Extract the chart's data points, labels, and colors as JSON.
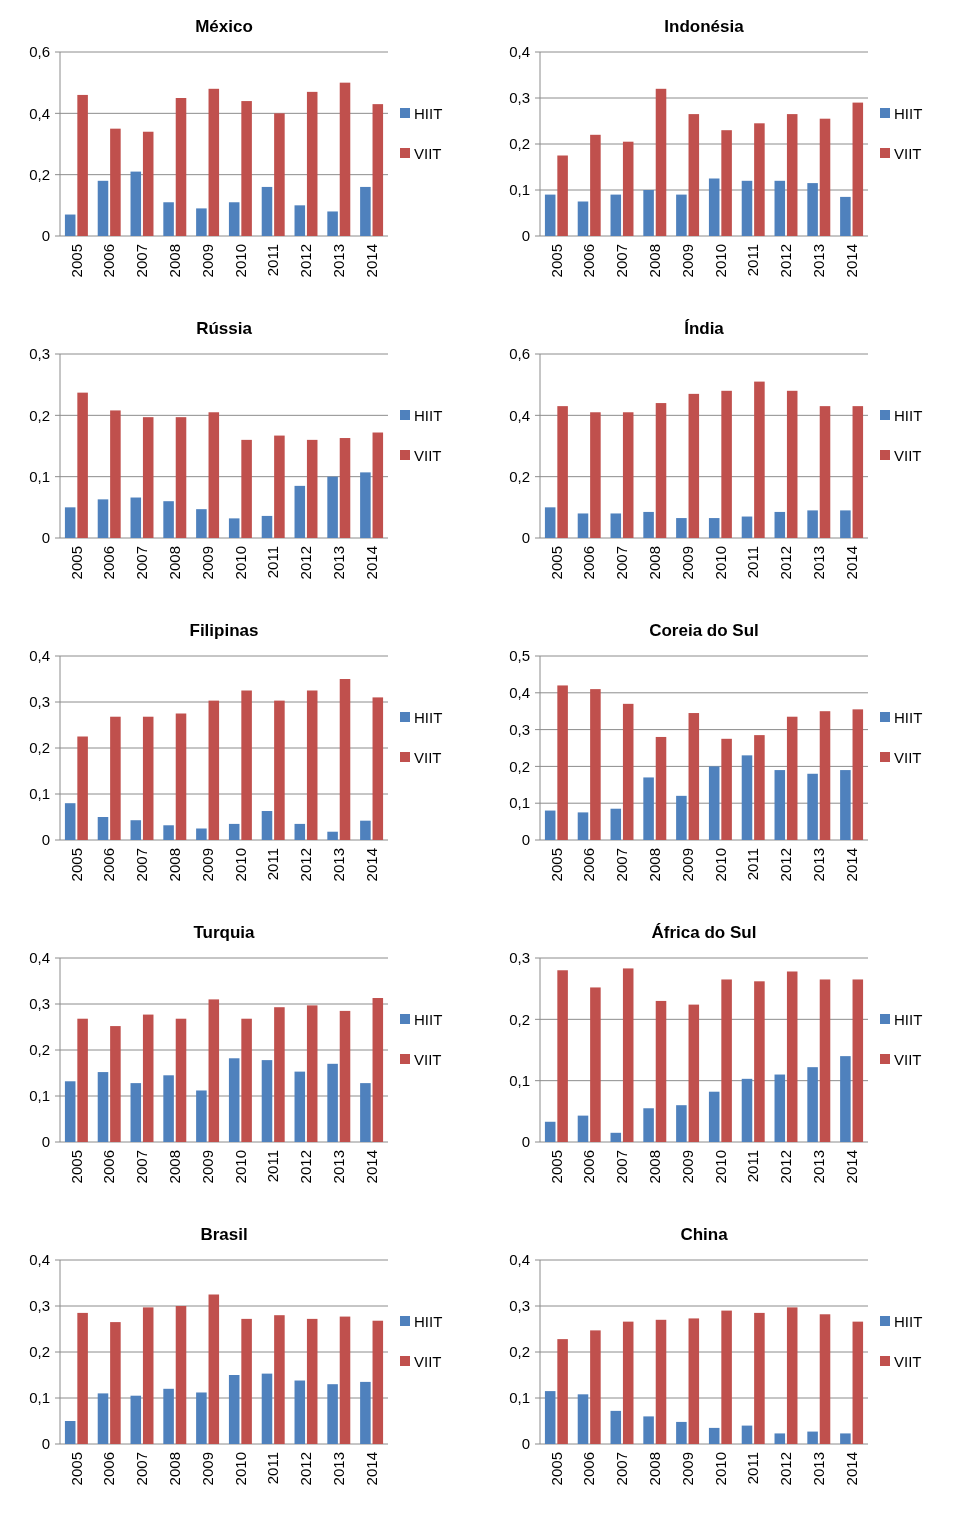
{
  "chart_data": [
    {
      "type": "bar",
      "title": "México",
      "categories": [
        "2005",
        "2006",
        "2007",
        "2008",
        "2009",
        "2010",
        "2011",
        "2012",
        "2013",
        "2014"
      ],
      "ylim": [
        0,
        0.6
      ],
      "yticks": [
        {
          "value": 0,
          "label": "0"
        },
        {
          "value": 0.2,
          "label": "0,2"
        },
        {
          "value": 0.4,
          "label": "0,4"
        },
        {
          "value": 0.6,
          "label": "0,6"
        }
      ],
      "grid": "y",
      "legend": "right",
      "series": [
        {
          "name": "HIIT",
          "color": "#4f81bd",
          "values": [
            0.07,
            0.18,
            0.21,
            0.11,
            0.09,
            0.11,
            0.16,
            0.1,
            0.08,
            0.16
          ]
        },
        {
          "name": "VIIT",
          "color": "#c0504d",
          "values": [
            0.46,
            0.35,
            0.34,
            0.45,
            0.48,
            0.44,
            0.4,
            0.47,
            0.5,
            0.43
          ]
        }
      ]
    },
    {
      "type": "bar",
      "title": "Indonésia",
      "categories": [
        "2005",
        "2006",
        "2007",
        "2008",
        "2009",
        "2010",
        "2011",
        "2012",
        "2013",
        "2014"
      ],
      "ylim": [
        0,
        0.4
      ],
      "yticks": [
        {
          "value": 0,
          "label": "0"
        },
        {
          "value": 0.1,
          "label": "0,1"
        },
        {
          "value": 0.2,
          "label": "0,2"
        },
        {
          "value": 0.3,
          "label": "0,3"
        },
        {
          "value": 0.4,
          "label": "0,4"
        }
      ],
      "grid": "y",
      "legend": "right",
      "series": [
        {
          "name": "HIIT",
          "color": "#4f81bd",
          "values": [
            0.09,
            0.075,
            0.09,
            0.1,
            0.09,
            0.125,
            0.12,
            0.12,
            0.115,
            0.085
          ]
        },
        {
          "name": "VIIT",
          "color": "#c0504d",
          "values": [
            0.175,
            0.22,
            0.205,
            0.32,
            0.265,
            0.23,
            0.245,
            0.265,
            0.255,
            0.29
          ]
        }
      ]
    },
    {
      "type": "bar",
      "title": "Rússia",
      "categories": [
        "2005",
        "2006",
        "2007",
        "2008",
        "2009",
        "2010",
        "2011",
        "2012",
        "2013",
        "2014"
      ],
      "ylim": [
        0,
        0.3
      ],
      "yticks": [
        {
          "value": 0,
          "label": "0"
        },
        {
          "value": 0.1,
          "label": "0,1"
        },
        {
          "value": 0.2,
          "label": "0,2"
        },
        {
          "value": 0.3,
          "label": "0,3"
        }
      ],
      "grid": "y",
      "legend": "right",
      "series": [
        {
          "name": "HIIT",
          "color": "#4f81bd",
          "values": [
            0.05,
            0.063,
            0.066,
            0.06,
            0.047,
            0.032,
            0.036,
            0.085,
            0.1,
            0.107
          ]
        },
        {
          "name": "VIIT",
          "color": "#c0504d",
          "values": [
            0.237,
            0.208,
            0.197,
            0.197,
            0.205,
            0.16,
            0.167,
            0.16,
            0.163,
            0.172
          ]
        }
      ]
    },
    {
      "type": "bar",
      "title": "Índia",
      "categories": [
        "2005",
        "2006",
        "2007",
        "2008",
        "2009",
        "2010",
        "2011",
        "2012",
        "2013",
        "2014"
      ],
      "ylim": [
        0,
        0.6
      ],
      "yticks": [
        {
          "value": 0,
          "label": "0"
        },
        {
          "value": 0.2,
          "label": "0,2"
        },
        {
          "value": 0.4,
          "label": "0,4"
        },
        {
          "value": 0.6,
          "label": "0,6"
        }
      ],
      "grid": "y",
      "legend": "right",
      "series": [
        {
          "name": "HIIT",
          "color": "#4f81bd",
          "values": [
            0.1,
            0.08,
            0.08,
            0.085,
            0.065,
            0.065,
            0.07,
            0.085,
            0.09,
            0.09
          ]
        },
        {
          "name": "VIIT",
          "color": "#c0504d",
          "values": [
            0.43,
            0.41,
            0.41,
            0.44,
            0.47,
            0.48,
            0.51,
            0.48,
            0.43,
            0.43
          ]
        }
      ]
    },
    {
      "type": "bar",
      "title": "Filipinas",
      "categories": [
        "2005",
        "2006",
        "2007",
        "2008",
        "2009",
        "2010",
        "2011",
        "2012",
        "2013",
        "2014"
      ],
      "ylim": [
        0,
        0.4
      ],
      "yticks": [
        {
          "value": 0,
          "label": "0"
        },
        {
          "value": 0.1,
          "label": "0,1"
        },
        {
          "value": 0.2,
          "label": "0,2"
        },
        {
          "value": 0.3,
          "label": "0,3"
        },
        {
          "value": 0.4,
          "label": "0,4"
        }
      ],
      "grid": "y",
      "legend": "right",
      "series": [
        {
          "name": "HIIT",
          "color": "#4f81bd",
          "values": [
            0.08,
            0.05,
            0.043,
            0.032,
            0.025,
            0.035,
            0.063,
            0.035,
            0.018,
            0.042
          ]
        },
        {
          "name": "VIIT",
          "color": "#c0504d",
          "values": [
            0.225,
            0.268,
            0.268,
            0.275,
            0.303,
            0.325,
            0.303,
            0.325,
            0.35,
            0.31
          ]
        }
      ]
    },
    {
      "type": "bar",
      "title": "Coreia do Sul",
      "categories": [
        "2005",
        "2006",
        "2007",
        "2008",
        "2009",
        "2010",
        "2011",
        "2012",
        "2013",
        "2014"
      ],
      "ylim": [
        0,
        0.5
      ],
      "yticks": [
        {
          "value": 0,
          "label": "0"
        },
        {
          "value": 0.1,
          "label": "0,1"
        },
        {
          "value": 0.2,
          "label": "0,2"
        },
        {
          "value": 0.3,
          "label": "0,3"
        },
        {
          "value": 0.4,
          "label": "0,4"
        },
        {
          "value": 0.5,
          "label": "0,5"
        }
      ],
      "grid": "y",
      "legend": "right",
      "series": [
        {
          "name": "HIIT",
          "color": "#4f81bd",
          "values": [
            0.08,
            0.075,
            0.085,
            0.17,
            0.12,
            0.2,
            0.23,
            0.19,
            0.18,
            0.19
          ]
        },
        {
          "name": "VIIT",
          "color": "#c0504d",
          "values": [
            0.42,
            0.41,
            0.37,
            0.28,
            0.345,
            0.275,
            0.285,
            0.335,
            0.35,
            0.355
          ]
        }
      ]
    },
    {
      "type": "bar",
      "title": "Turquia",
      "categories": [
        "2005",
        "2006",
        "2007",
        "2008",
        "2009",
        "2010",
        "2011",
        "2012",
        "2013",
        "2014"
      ],
      "ylim": [
        0,
        0.4
      ],
      "yticks": [
        {
          "value": 0,
          "label": "0"
        },
        {
          "value": 0.1,
          "label": "0,1"
        },
        {
          "value": 0.2,
          "label": "0,2"
        },
        {
          "value": 0.3,
          "label": "0,3"
        },
        {
          "value": 0.4,
          "label": "0,4"
        }
      ],
      "grid": "y",
      "legend": "right",
      "series": [
        {
          "name": "HIIT",
          "color": "#4f81bd",
          "values": [
            0.132,
            0.152,
            0.128,
            0.145,
            0.112,
            0.182,
            0.178,
            0.153,
            0.17,
            0.128
          ]
        },
        {
          "name": "VIIT",
          "color": "#c0504d",
          "values": [
            0.268,
            0.252,
            0.277,
            0.268,
            0.31,
            0.268,
            0.293,
            0.297,
            0.285,
            0.313
          ]
        }
      ]
    },
    {
      "type": "bar",
      "title": "África do Sul",
      "categories": [
        "2005",
        "2006",
        "2007",
        "2008",
        "2009",
        "2010",
        "2011",
        "2012",
        "2013",
        "2014"
      ],
      "ylim": [
        0,
        0.3
      ],
      "yticks": [
        {
          "value": 0,
          "label": "0"
        },
        {
          "value": 0.1,
          "label": "0,1"
        },
        {
          "value": 0.2,
          "label": "0,2"
        },
        {
          "value": 0.3,
          "label": "0,3"
        }
      ],
      "grid": "y",
      "legend": "right",
      "series": [
        {
          "name": "HIIT",
          "color": "#4f81bd",
          "values": [
            0.033,
            0.043,
            0.015,
            0.055,
            0.06,
            0.082,
            0.103,
            0.11,
            0.122,
            0.14
          ]
        },
        {
          "name": "VIIT",
          "color": "#c0504d",
          "values": [
            0.28,
            0.252,
            0.283,
            0.23,
            0.224,
            0.265,
            0.262,
            0.278,
            0.265,
            0.265
          ]
        }
      ]
    },
    {
      "type": "bar",
      "title": "Brasil",
      "categories": [
        "2005",
        "2006",
        "2007",
        "2008",
        "2009",
        "2010",
        "2011",
        "2012",
        "2013",
        "2014"
      ],
      "ylim": [
        0,
        0.4
      ],
      "yticks": [
        {
          "value": 0,
          "label": "0"
        },
        {
          "value": 0.1,
          "label": "0,1"
        },
        {
          "value": 0.2,
          "label": "0,2"
        },
        {
          "value": 0.3,
          "label": "0,3"
        },
        {
          "value": 0.4,
          "label": "0,4"
        }
      ],
      "grid": "y",
      "legend": "right",
      "series": [
        {
          "name": "HIIT",
          "color": "#4f81bd",
          "values": [
            0.05,
            0.11,
            0.105,
            0.12,
            0.112,
            0.15,
            0.153,
            0.138,
            0.13,
            0.135
          ]
        },
        {
          "name": "VIIT",
          "color": "#c0504d",
          "values": [
            0.285,
            0.265,
            0.297,
            0.3,
            0.325,
            0.272,
            0.28,
            0.272,
            0.277,
            0.268
          ]
        }
      ]
    },
    {
      "type": "bar",
      "title": "China",
      "categories": [
        "2005",
        "2006",
        "2007",
        "2008",
        "2009",
        "2010",
        "2011",
        "2012",
        "2013",
        "2014"
      ],
      "ylim": [
        0,
        0.4
      ],
      "yticks": [
        {
          "value": 0,
          "label": "0"
        },
        {
          "value": 0.1,
          "label": "0,1"
        },
        {
          "value": 0.2,
          "label": "0,2"
        },
        {
          "value": 0.3,
          "label": "0,3"
        },
        {
          "value": 0.4,
          "label": "0,4"
        }
      ],
      "grid": "y",
      "legend": "right",
      "series": [
        {
          "name": "HIIT",
          "color": "#4f81bd",
          "values": [
            0.115,
            0.108,
            0.072,
            0.06,
            0.048,
            0.035,
            0.04,
            0.023,
            0.027,
            0.023
          ]
        },
        {
          "name": "VIIT",
          "color": "#c0504d",
          "values": [
            0.228,
            0.247,
            0.266,
            0.27,
            0.273,
            0.29,
            0.285,
            0.297,
            0.282,
            0.266
          ]
        }
      ]
    }
  ]
}
